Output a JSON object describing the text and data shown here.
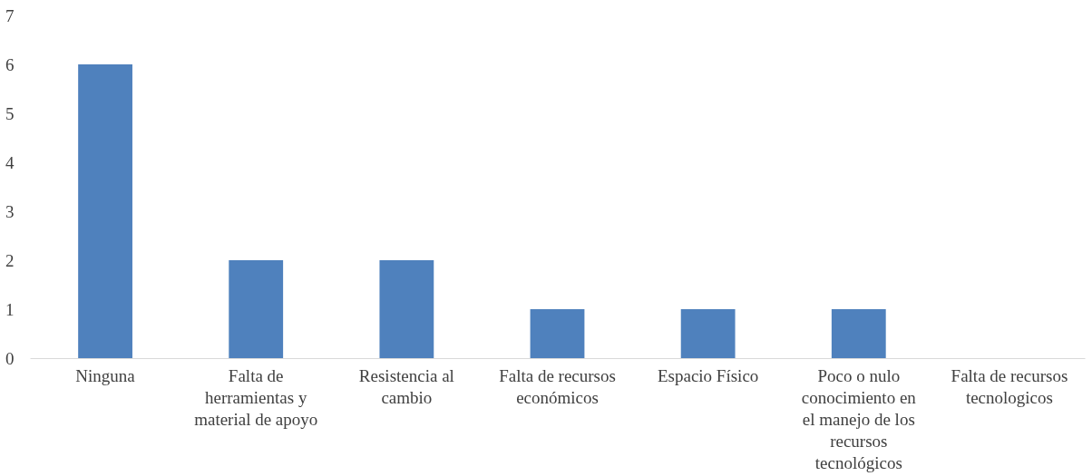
{
  "chart_data": {
    "type": "bar",
    "categories": [
      "Ninguna",
      "Falta de herramientas y material de apoyo",
      "Resistencia al cambio",
      "Falta de recursos económicos",
      "Espacio Físico",
      "Poco o nulo conocimiento en el manejo de los recursos tecnológicos",
      "Falta de recursos tecnologicos"
    ],
    "values": [
      6,
      2,
      2,
      1,
      1,
      1,
      0
    ],
    "color": "#4f81bd",
    "ylim": [
      0,
      7
    ],
    "yticks": [
      0,
      1,
      2,
      3,
      4,
      5,
      6,
      7
    ],
    "grid": false
  }
}
